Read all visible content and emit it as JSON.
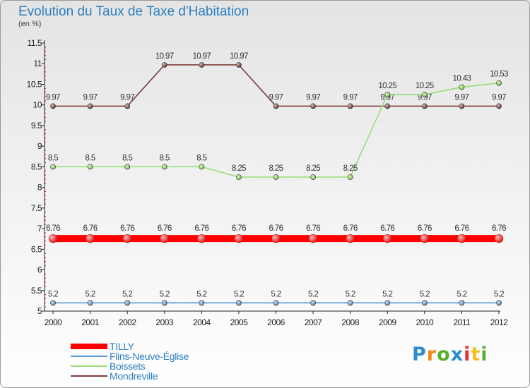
{
  "title": "Evolution du Taux de Taxe d'Habitation",
  "unit": "(en %)",
  "logo": {
    "text": "Proxiti",
    "colors": [
      "#2d8cd0",
      "#f08a1c",
      "#58b030",
      "#2d8cd0",
      "#e03030",
      "#f0c020",
      "#58b030"
    ]
  },
  "chart_data": {
    "type": "line",
    "title": "Evolution du Taux de Taxe d'Habitation",
    "ylabel": "(en %)",
    "xlabel": "",
    "categories": [
      "2000",
      "2001",
      "2002",
      "2003",
      "2004",
      "2005",
      "2006",
      "2007",
      "2008",
      "2009",
      "2010",
      "2011",
      "2012"
    ],
    "ylim": [
      5,
      11.5
    ],
    "yticks": [
      "5",
      "5.5",
      "6",
      "6.5",
      "7",
      "7.5",
      "8",
      "8.5",
      "9",
      "9.5",
      "10",
      "10.5",
      "11",
      "11.5"
    ],
    "grid": false,
    "legend_position": "bottom-left",
    "series": [
      {
        "name": "TILLY",
        "color": "#ff0000",
        "values": [
          6.76,
          6.76,
          6.76,
          6.76,
          6.76,
          6.76,
          6.76,
          6.76,
          6.76,
          6.76,
          6.76,
          6.76,
          6.76
        ],
        "labels": [
          "6.76",
          "6.76",
          "6.76",
          "6.76",
          "6.76",
          "6.76",
          "6.76",
          "6.76",
          "6.76",
          "6.76",
          "6.76",
          "6.76",
          "6.76"
        ]
      },
      {
        "name": "Flins-Neuve-Église",
        "color": "#5b9bd5",
        "values": [
          5.2,
          5.2,
          5.2,
          5.2,
          5.2,
          5.2,
          5.2,
          5.2,
          5.2,
          5.2,
          5.2,
          5.2,
          5.2
        ],
        "labels": [
          "5.2",
          "5.2",
          "5.2",
          "5.2",
          "5.2",
          "5.2",
          "5.2",
          "5.2",
          "5.2",
          "5.2",
          "5.2",
          "5.2",
          "5.2"
        ]
      },
      {
        "name": "Boissets",
        "color": "#99dd77",
        "values": [
          8.5,
          8.5,
          8.5,
          8.5,
          8.5,
          8.25,
          8.25,
          8.25,
          8.25,
          10.25,
          10.25,
          10.43,
          10.53
        ],
        "labels": [
          "8.5",
          "8.5",
          "8.5",
          "8.5",
          "8.5",
          "8.25",
          "8.25",
          "8.25",
          "8.25",
          "10.25",
          "10.25",
          "10.43",
          "10.53"
        ]
      },
      {
        "name": "Mondreville",
        "color": "#7a3b3b",
        "values": [
          9.97,
          9.97,
          9.97,
          10.97,
          10.97,
          10.97,
          9.97,
          9.97,
          9.97,
          9.97,
          9.97,
          9.97,
          9.97
        ],
        "labels": [
          "9.97",
          "9.97",
          "9.97",
          "10.97",
          "10.97",
          "10.97",
          "9.97",
          "9.97",
          "9.97",
          "9.97",
          "9.97",
          "9.97",
          "9.97"
        ]
      }
    ]
  }
}
